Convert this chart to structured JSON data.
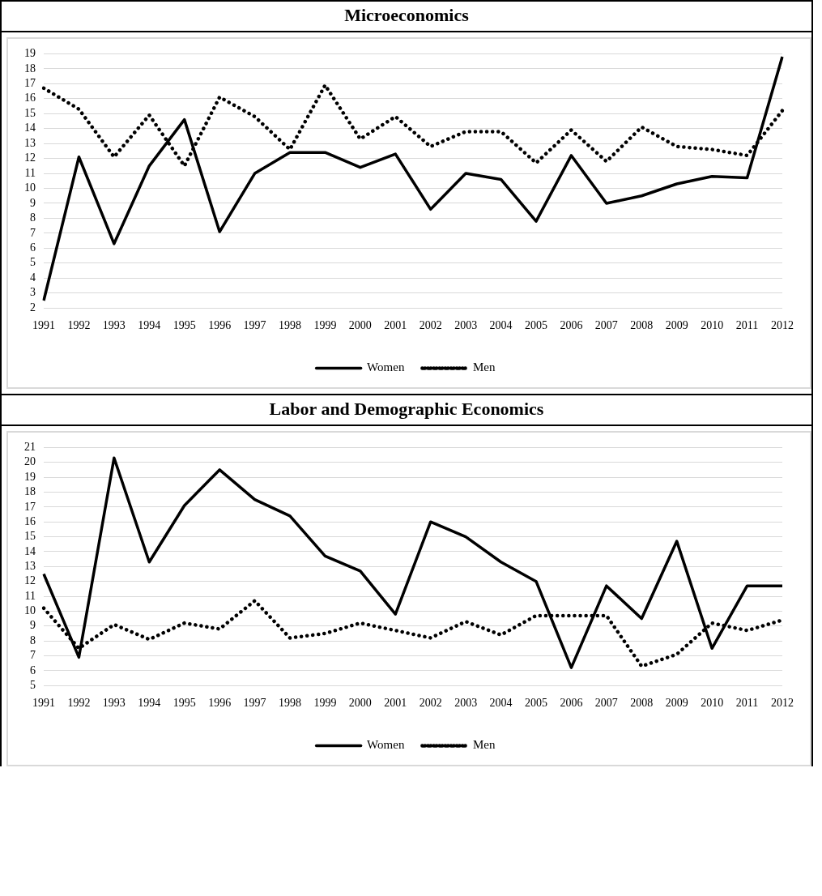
{
  "chart_data": [
    {
      "type": "line",
      "title": "Microeconomics",
      "categories": [
        "1991",
        "1992",
        "1993",
        "1994",
        "1995",
        "1996",
        "1997",
        "1998",
        "1999",
        "2000",
        "2001",
        "2002",
        "2003",
        "2004",
        "2005",
        "2006",
        "2007",
        "2008",
        "2009",
        "2010",
        "2011",
        "2012"
      ],
      "series": [
        {
          "name": "Women",
          "color": "#000000",
          "line_style": "solid",
          "values": [
            2.5,
            12.1,
            6.3,
            11.5,
            14.6,
            7.1,
            11.0,
            12.4,
            12.4,
            11.4,
            12.3,
            8.6,
            11.0,
            10.6,
            7.8,
            12.2,
            9.0,
            9.5,
            10.3,
            10.8,
            10.7,
            18.8
          ]
        },
        {
          "name": "Men",
          "color": "#000000",
          "line_style": "dotted",
          "values": [
            16.7,
            15.3,
            12.1,
            14.9,
            11.5,
            16.1,
            14.8,
            12.6,
            16.9,
            13.3,
            14.8,
            12.8,
            13.8,
            13.8,
            11.7,
            13.9,
            11.8,
            14.1,
            12.8,
            12.6,
            12.2,
            15.2
          ]
        }
      ],
      "ylim": [
        2,
        19
      ],
      "yticks": [
        2,
        3,
        4,
        5,
        6,
        7,
        8,
        9,
        10,
        11,
        12,
        13,
        14,
        15,
        16,
        17,
        18,
        19
      ],
      "grid": "y",
      "legend": "bottom",
      "marker": "none"
    },
    {
      "type": "line",
      "title": "Labor and Demographic Economics",
      "categories": [
        "1991",
        "1992",
        "1993",
        "1994",
        "1995",
        "1996",
        "1997",
        "1998",
        "1999",
        "2000",
        "2001",
        "2002",
        "2003",
        "2004",
        "2005",
        "2006",
        "2007",
        "2008",
        "2009",
        "2010",
        "2011",
        "2012"
      ],
      "series": [
        {
          "name": "Women",
          "color": "#000000",
          "line_style": "solid",
          "values": [
            12.5,
            6.9,
            20.3,
            13.3,
            17.1,
            19.5,
            17.5,
            16.4,
            13.7,
            12.7,
            9.8,
            16.0,
            15.0,
            13.3,
            12.0,
            6.2,
            11.7,
            9.5,
            14.7,
            7.5,
            11.7,
            11.7
          ]
        },
        {
          "name": "Men",
          "color": "#000000",
          "line_style": "dotted",
          "values": [
            10.2,
            7.5,
            9.1,
            8.1,
            9.2,
            8.8,
            10.7,
            8.2,
            8.5,
            9.2,
            8.7,
            8.2,
            9.3,
            8.4,
            9.7,
            9.7,
            9.7,
            6.3,
            7.1,
            9.2,
            8.7,
            9.4
          ]
        }
      ],
      "ylim": [
        5,
        21
      ],
      "yticks": [
        5,
        6,
        7,
        8,
        9,
        10,
        11,
        12,
        13,
        14,
        15,
        16,
        17,
        18,
        19,
        20,
        21
      ],
      "grid": "y",
      "legend": "bottom",
      "marker": "none"
    }
  ]
}
